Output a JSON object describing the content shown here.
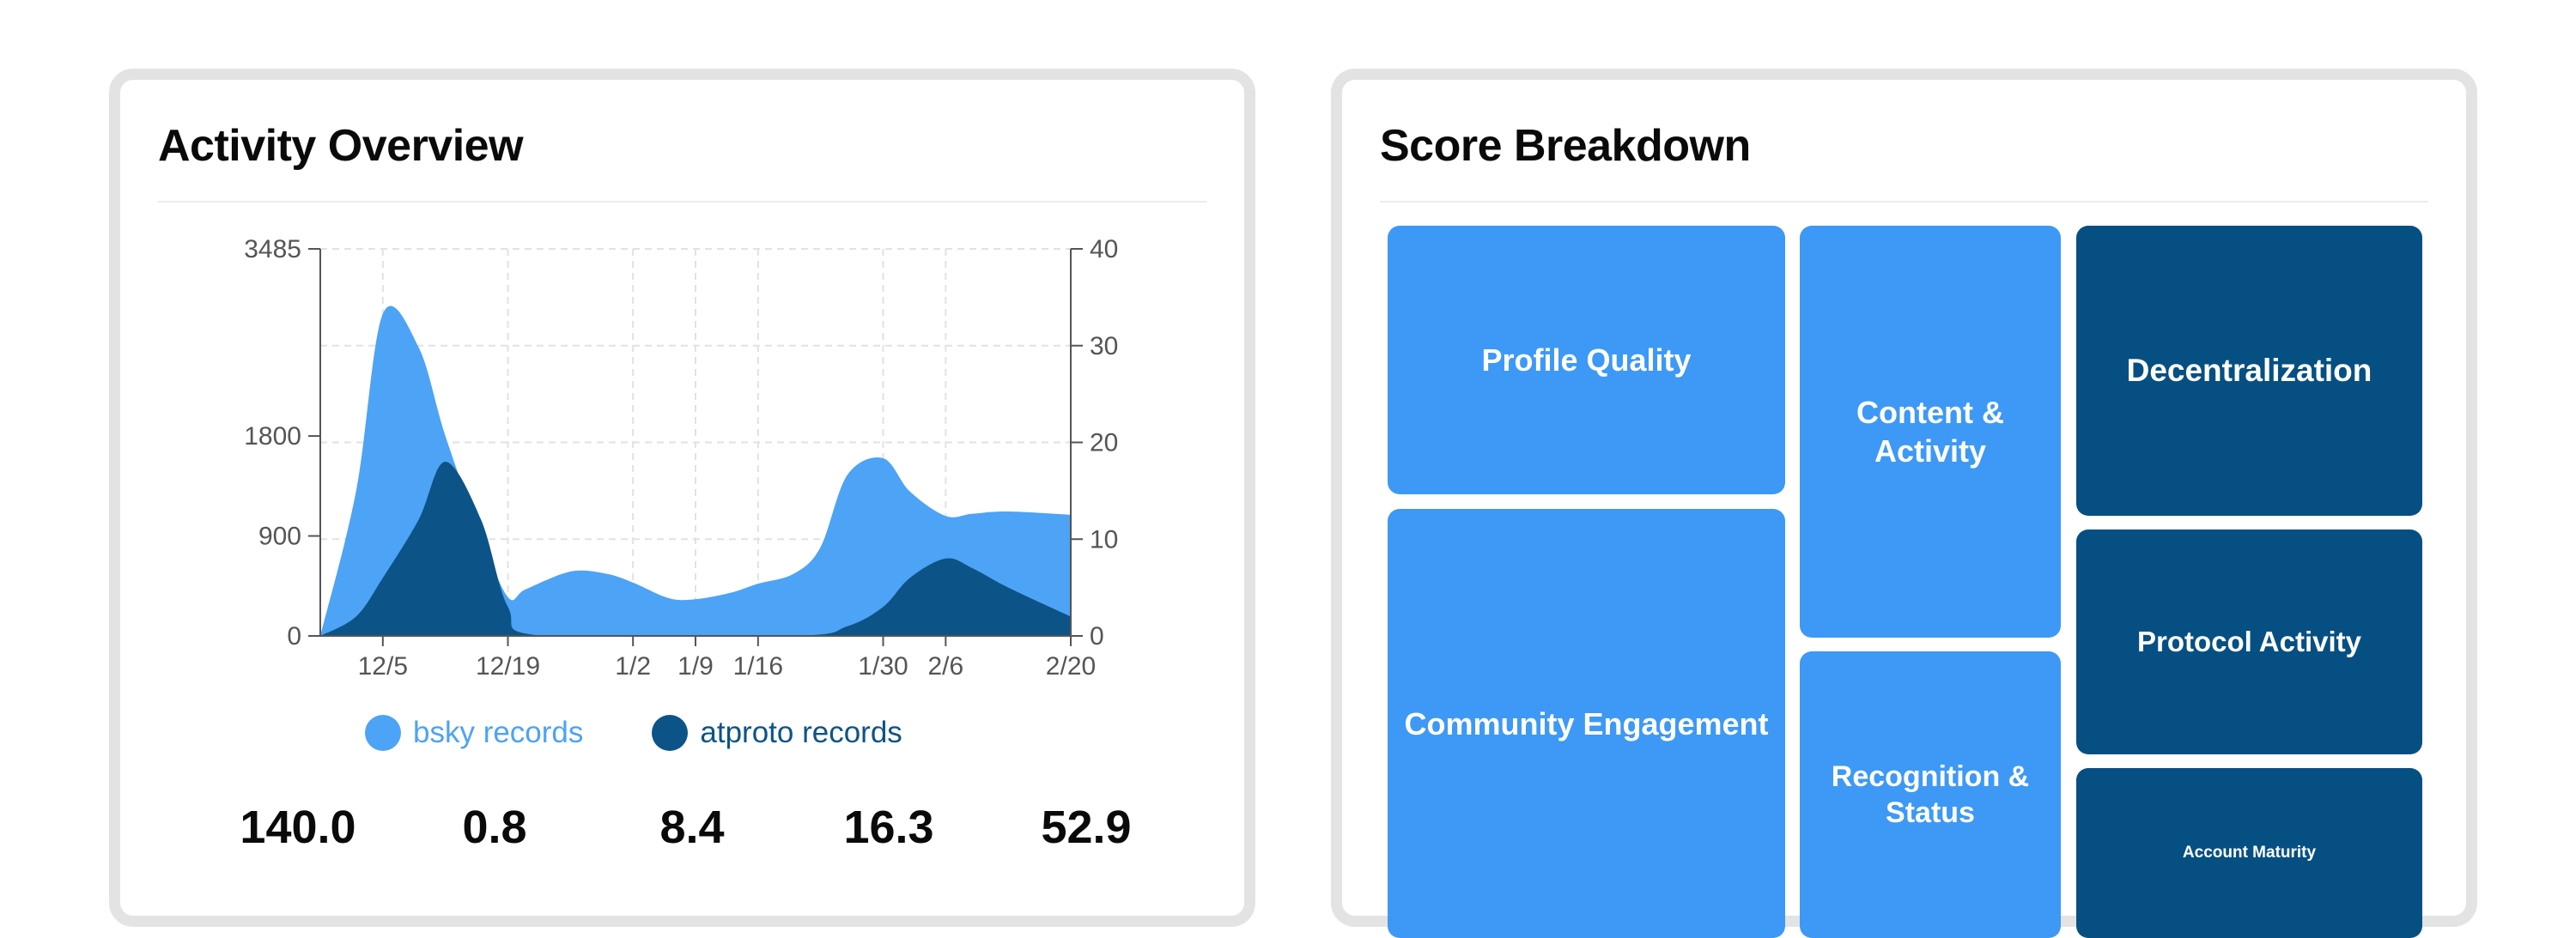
{
  "activity_card": {
    "title": "Activity Overview",
    "legend": [
      {
        "label": "bsky records",
        "color": "#4da3f5"
      },
      {
        "label": "atproto records",
        "color": "#0c5487"
      }
    ],
    "stats": [
      {
        "value": "140.0"
      },
      {
        "value": "0.8"
      },
      {
        "value": "8.4"
      },
      {
        "value": "16.3"
      },
      {
        "value": "52.9"
      }
    ]
  },
  "chart_data": {
    "type": "area",
    "x_ticks": [
      "12/5",
      "12/19",
      "1/2",
      "1/9",
      "1/16",
      "1/30",
      "2/6",
      "2/20"
    ],
    "y_left_ticks": [
      0,
      900,
      1800,
      3485
    ],
    "y_right_ticks": [
      0,
      10,
      20,
      30,
      40
    ],
    "grid": true,
    "legend_position": "bottom",
    "series": [
      {
        "name": "bsky records",
        "axis": "left",
        "color": "#4da3f5",
        "x": [
          "11/28",
          "12/2",
          "12/5",
          "12/9",
          "12/12",
          "12/16",
          "12/19",
          "12/21",
          "12/26",
          "12/30",
          "1/2",
          "1/6",
          "1/9",
          "1/13",
          "1/16",
          "1/20",
          "1/23",
          "1/26",
          "1/30",
          "2/2",
          "2/6",
          "2/9",
          "2/13",
          "2/20"
        ],
        "y": [
          0,
          1300,
          2900,
          2600,
          1800,
          900,
          350,
          420,
          580,
          560,
          480,
          340,
          330,
          390,
          470,
          560,
          800,
          1450,
          1600,
          1300,
          1080,
          1100,
          1120,
          1090
        ]
      },
      {
        "name": "atproto records",
        "axis": "right",
        "color": "#0c5487",
        "x": [
          "11/28",
          "12/2",
          "12/5",
          "12/9",
          "12/12",
          "12/16",
          "12/19",
          "12/23",
          "1/20",
          "1/26",
          "1/30",
          "2/2",
          "2/6",
          "2/9",
          "2/13",
          "2/20"
        ],
        "y": [
          0,
          2,
          6,
          12,
          18,
          12,
          3,
          0,
          0,
          1,
          3,
          6,
          8,
          7,
          5,
          2
        ]
      }
    ]
  },
  "score_card": {
    "title": "Score Breakdown",
    "tiles": [
      {
        "label": "Profile Quality",
        "tone": "light",
        "font": 36
      },
      {
        "label": "Community Engagement",
        "tone": "light",
        "font": 36
      },
      {
        "label": "Content & Activity",
        "tone": "light",
        "font": 36
      },
      {
        "label": "Recognition & Status",
        "tone": "light",
        "font": 34
      },
      {
        "label": "Decentralization",
        "tone": "dark",
        "font": 37
      },
      {
        "label": "Protocol Activity",
        "tone": "dark",
        "font": 33
      },
      {
        "label": "Account Maturity",
        "tone": "dark",
        "font": 19
      }
    ]
  }
}
